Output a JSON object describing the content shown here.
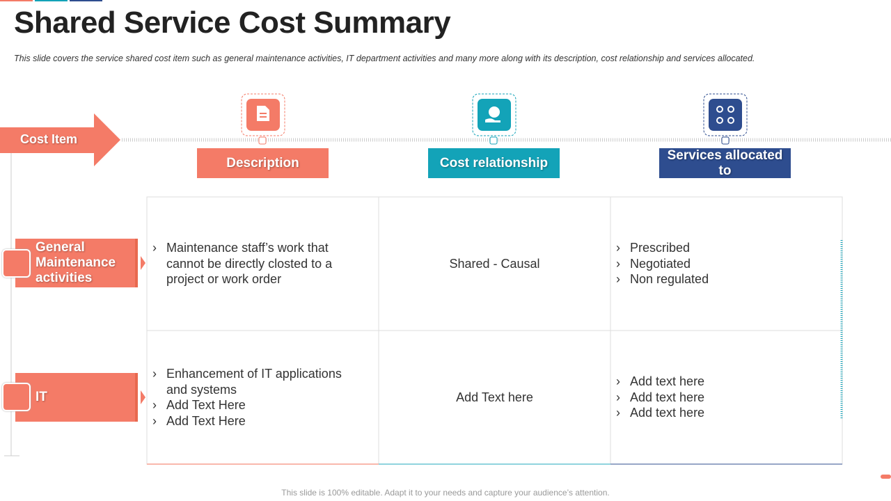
{
  "header": {
    "title": "Shared Service Cost Summary",
    "subtitle": "This slide covers the service shared cost item such as general maintenance activities, IT department activities and many more along with its description, cost relationship and services allocated."
  },
  "row_header": "Cost Item",
  "columns": [
    "Description",
    "Cost relationship",
    "Services allocated to"
  ],
  "rows": [
    {
      "label": "General Maintenance activities",
      "description": [
        "Maintenance staff’s work that cannot be directly closted to a project or work order"
      ],
      "cost_relationship": "Shared - Causal",
      "services": [
        "Prescribed",
        "Negotiated",
        "Non regulated"
      ]
    },
    {
      "label": "IT",
      "description": [
        "Enhancement of IT applications and systems",
        "Add Text Here",
        "Add Text Here"
      ],
      "cost_relationship": "Add Text here",
      "services": [
        "Add text here",
        "Add text here",
        "Add text here"
      ]
    }
  ],
  "footer": "This slide is 100% editable. Adapt it to your needs and capture your audience’s attention."
}
